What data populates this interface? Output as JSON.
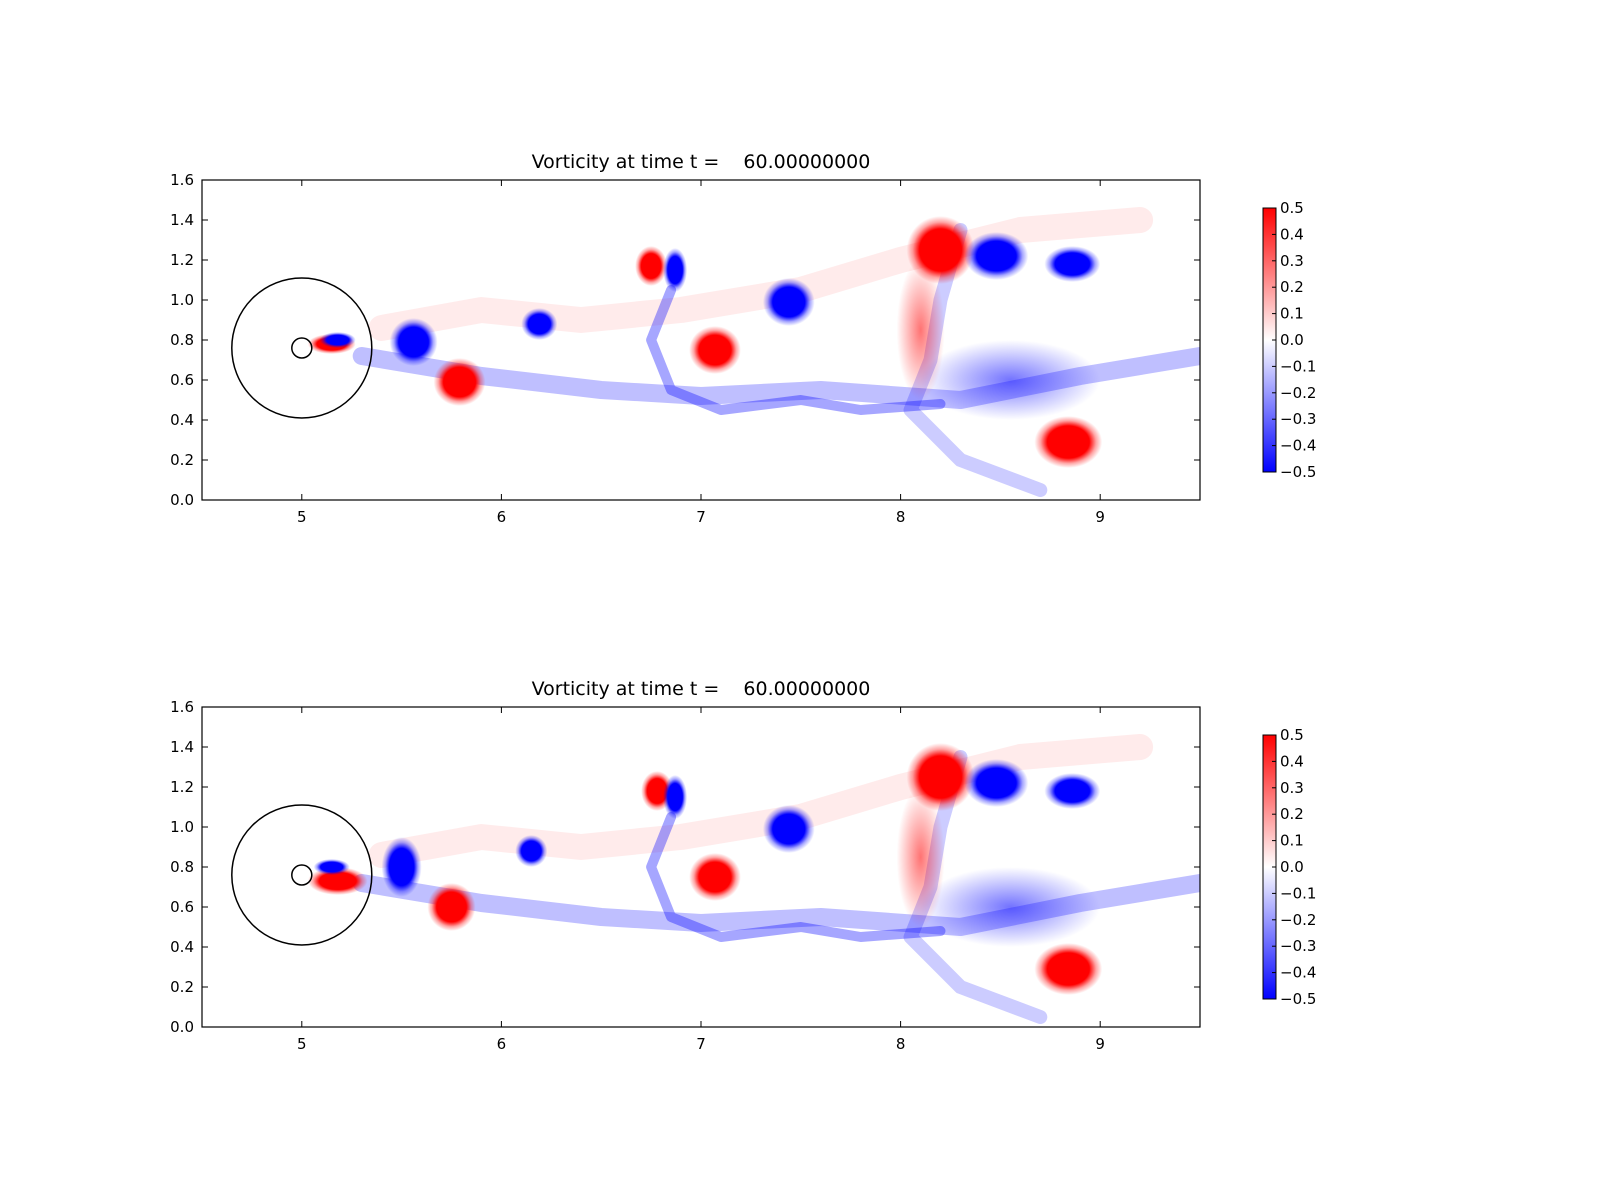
{
  "chart_data": [
    {
      "type": "heatmap",
      "title": "Vorticity at time t =    60.00000000",
      "xlim": [
        4.5,
        9.5
      ],
      "ylim": [
        0.0,
        1.6
      ],
      "xticks": [
        "5",
        "6",
        "7",
        "8",
        "9"
      ],
      "yticks": [
        "0.0",
        "0.2",
        "0.4",
        "0.6",
        "0.8",
        "1.0",
        "1.2",
        "1.4",
        "1.6"
      ],
      "colorbar": {
        "range": [
          -0.5,
          0.5
        ],
        "ticks": [
          "0.5",
          "0.4",
          "0.3",
          "0.2",
          "0.1",
          "0.0",
          "−0.1",
          "−0.2",
          "−0.3",
          "−0.4",
          "−0.5"
        ],
        "colors": [
          "#0000ff",
          "#ffffff",
          "#ff0000"
        ]
      },
      "outlines": [
        {
          "shape": "circle",
          "center": [
            5.0,
            0.76
          ],
          "radius": 0.35
        },
        {
          "shape": "circle",
          "center": [
            5.0,
            0.76
          ],
          "radius": 0.05
        }
      ],
      "vortices": [
        {
          "x": 5.15,
          "y": 0.78,
          "rx": 0.12,
          "ry": 0.05,
          "sign": 1
        },
        {
          "x": 5.18,
          "y": 0.8,
          "rx": 0.09,
          "ry": 0.04,
          "sign": -1
        },
        {
          "x": 5.56,
          "y": 0.79,
          "rx": 0.12,
          "ry": 0.12,
          "sign": -1
        },
        {
          "x": 5.79,
          "y": 0.59,
          "rx": 0.13,
          "ry": 0.12,
          "sign": 1
        },
        {
          "x": 6.19,
          "y": 0.88,
          "rx": 0.09,
          "ry": 0.08,
          "sign": -1
        },
        {
          "x": 6.75,
          "y": 1.17,
          "rx": 0.08,
          "ry": 0.1,
          "sign": 1
        },
        {
          "x": 6.87,
          "y": 1.15,
          "rx": 0.06,
          "ry": 0.11,
          "sign": -1
        },
        {
          "x": 7.07,
          "y": 0.75,
          "rx": 0.13,
          "ry": 0.12,
          "sign": 1
        },
        {
          "x": 7.44,
          "y": 0.99,
          "rx": 0.13,
          "ry": 0.12,
          "sign": -1
        },
        {
          "x": 8.2,
          "y": 1.25,
          "rx": 0.17,
          "ry": 0.17,
          "sign": 1
        },
        {
          "x": 8.48,
          "y": 1.22,
          "rx": 0.16,
          "ry": 0.12,
          "sign": -1
        },
        {
          "x": 8.86,
          "y": 1.18,
          "rx": 0.14,
          "ry": 0.09,
          "sign": -1
        },
        {
          "x": 8.84,
          "y": 0.29,
          "rx": 0.17,
          "ry": 0.13,
          "sign": 1
        },
        {
          "x": 8.1,
          "y": 0.85,
          "rx": 0.12,
          "ry": 0.35,
          "sign": 0.35
        },
        {
          "x": 8.55,
          "y": 0.6,
          "rx": 0.45,
          "ry": 0.2,
          "sign": -0.15
        }
      ]
    },
    {
      "type": "heatmap",
      "title": "Vorticity at time t =    60.00000000",
      "xlim": [
        4.5,
        9.5
      ],
      "ylim": [
        0.0,
        1.6
      ],
      "xticks": [
        "5",
        "6",
        "7",
        "8",
        "9"
      ],
      "yticks": [
        "0.0",
        "0.2",
        "0.4",
        "0.6",
        "0.8",
        "1.0",
        "1.2",
        "1.4",
        "1.6"
      ],
      "colorbar": {
        "range": [
          -0.5,
          0.5
        ],
        "ticks": [
          "0.5",
          "0.4",
          "0.3",
          "0.2",
          "0.1",
          "0.0",
          "−0.1",
          "−0.2",
          "−0.3",
          "−0.4",
          "−0.5"
        ],
        "colors": [
          "#0000ff",
          "#ffffff",
          "#ff0000"
        ]
      },
      "outlines": [
        {
          "shape": "circle",
          "center": [
            5.0,
            0.76
          ],
          "radius": 0.35
        },
        {
          "shape": "circle",
          "center": [
            5.0,
            0.76
          ],
          "radius": 0.05
        }
      ],
      "vortices": [
        {
          "x": 5.18,
          "y": 0.73,
          "rx": 0.15,
          "ry": 0.07,
          "sign": 1
        },
        {
          "x": 5.15,
          "y": 0.8,
          "rx": 0.09,
          "ry": 0.04,
          "sign": -1
        },
        {
          "x": 5.5,
          "y": 0.8,
          "rx": 0.1,
          "ry": 0.15,
          "sign": -1
        },
        {
          "x": 5.75,
          "y": 0.6,
          "rx": 0.12,
          "ry": 0.12,
          "sign": 1
        },
        {
          "x": 6.15,
          "y": 0.88,
          "rx": 0.08,
          "ry": 0.08,
          "sign": -1
        },
        {
          "x": 6.78,
          "y": 1.18,
          "rx": 0.08,
          "ry": 0.1,
          "sign": 1
        },
        {
          "x": 6.87,
          "y": 1.15,
          "rx": 0.06,
          "ry": 0.11,
          "sign": -1
        },
        {
          "x": 7.07,
          "y": 0.75,
          "rx": 0.13,
          "ry": 0.12,
          "sign": 1
        },
        {
          "x": 7.44,
          "y": 0.99,
          "rx": 0.13,
          "ry": 0.12,
          "sign": -1
        },
        {
          "x": 8.2,
          "y": 1.25,
          "rx": 0.17,
          "ry": 0.17,
          "sign": 1
        },
        {
          "x": 8.48,
          "y": 1.22,
          "rx": 0.16,
          "ry": 0.12,
          "sign": -1
        },
        {
          "x": 8.86,
          "y": 1.18,
          "rx": 0.14,
          "ry": 0.09,
          "sign": -1
        },
        {
          "x": 8.84,
          "y": 0.29,
          "rx": 0.17,
          "ry": 0.13,
          "sign": 1
        },
        {
          "x": 8.1,
          "y": 0.85,
          "rx": 0.12,
          "ry": 0.35,
          "sign": 0.35
        },
        {
          "x": 8.55,
          "y": 0.6,
          "rx": 0.45,
          "ry": 0.2,
          "sign": -0.15
        }
      ]
    }
  ]
}
